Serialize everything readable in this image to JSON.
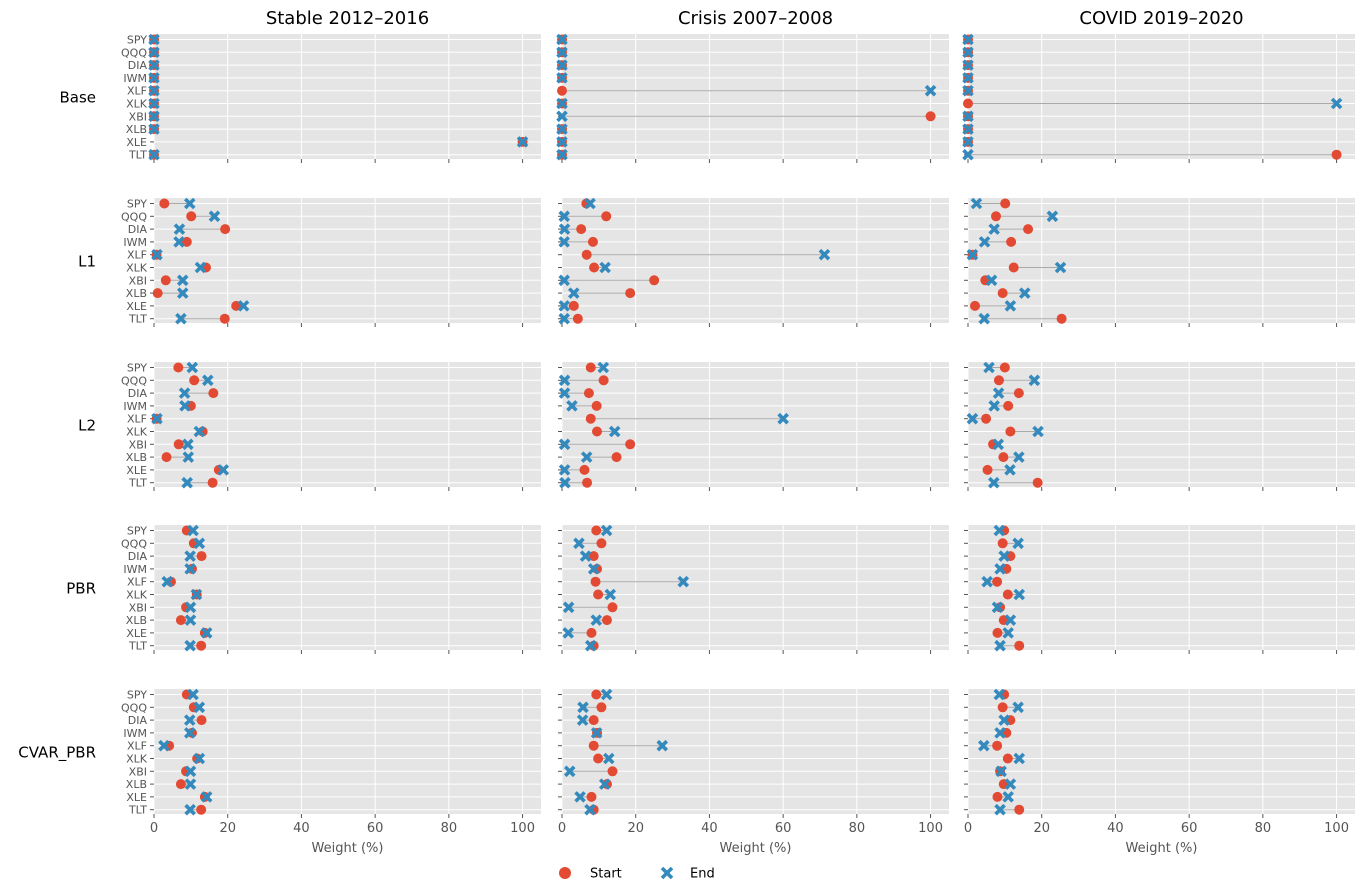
{
  "chart_data": {
    "type": "dumbbell",
    "xlabel": "Weight (%)",
    "xlim": [
      0,
      105
    ],
    "xticks": [
      0,
      20,
      40,
      60,
      80,
      100
    ],
    "columns": [
      "Stable 2012–2016",
      "Crisis 2007–2008",
      "COVID 2019–2020"
    ],
    "rows": [
      "Base",
      "L1",
      "L2",
      "PBR",
      "CVAR_PBR"
    ],
    "assets": [
      "SPY",
      "QQQ",
      "DIA",
      "IWM",
      "XLF",
      "XLK",
      "XBI",
      "XLB",
      "XLE",
      "TLT"
    ],
    "legend": {
      "start": "Start",
      "end": "End",
      "placement": "bottom-center"
    },
    "colors": {
      "start": "#E24A33",
      "end": "#348ABD",
      "panel": "#E5E5E5",
      "grid": "#FFFFFF",
      "line": "#AAAAAA"
    },
    "grid": true,
    "panels": [
      [
        {
          "start": [
            0,
            0,
            0,
            0,
            0,
            0,
            0,
            0,
            100,
            0
          ],
          "end": [
            0,
            0,
            0,
            0,
            0,
            0,
            0,
            0,
            100,
            0
          ]
        },
        {
          "start": [
            0,
            0,
            0,
            0,
            0,
            0,
            100,
            0,
            0,
            0
          ],
          "end": [
            0,
            0,
            0,
            0,
            100,
            0,
            0,
            0,
            0,
            0
          ]
        },
        {
          "start": [
            0,
            0,
            0,
            0,
            0,
            0,
            0,
            0,
            0,
            100
          ],
          "end": [
            0,
            0,
            0,
            0,
            0,
            100,
            0,
            0,
            0,
            0
          ]
        }
      ],
      [
        {
          "start": [
            2.8,
            10.1,
            19.3,
            8.9,
            0.7,
            14.1,
            3.2,
            1.0,
            22.3,
            19.2
          ],
          "end": [
            9.7,
            16.4,
            6.9,
            6.8,
            0.8,
            12.6,
            7.8,
            7.8,
            24.3,
            7.3
          ]
        },
        {
          "start": [
            6.6,
            12.0,
            5.2,
            8.4,
            6.7,
            8.7,
            25.0,
            18.5,
            3.2,
            4.3
          ],
          "end": [
            7.6,
            0.6,
            0.7,
            0.6,
            71.2,
            11.7,
            0.6,
            3.2,
            0.6,
            0.6
          ]
        },
        {
          "start": [
            10.1,
            7.6,
            16.3,
            11.7,
            1.2,
            12.4,
            4.7,
            9.4,
            1.9,
            25.4
          ],
          "end": [
            2.3,
            22.9,
            7.1,
            4.5,
            1.2,
            25.1,
            6.4,
            15.4,
            11.5,
            4.4
          ]
        }
      ],
      [
        {
          "start": [
            6.6,
            10.9,
            16.1,
            10.0,
            0.7,
            13.2,
            6.7,
            3.4,
            17.6,
            15.9
          ],
          "end": [
            10.4,
            14.6,
            8.3,
            8.4,
            0.8,
            12.3,
            9.2,
            9.3,
            18.8,
            9.0
          ]
        },
        {
          "start": [
            7.8,
            11.3,
            7.3,
            9.4,
            7.8,
            9.5,
            18.5,
            14.8,
            6.1,
            6.8
          ],
          "end": [
            11.2,
            0.7,
            0.7,
            2.7,
            60.0,
            14.3,
            0.7,
            6.7,
            0.7,
            0.8
          ]
        },
        {
          "start": [
            10.0,
            8.4,
            13.8,
            10.9,
            4.9,
            11.5,
            6.8,
            9.6,
            5.3,
            18.9
          ],
          "end": [
            5.7,
            18.0,
            8.3,
            7.1,
            1.2,
            19.0,
            8.2,
            13.8,
            11.4,
            7.0
          ]
        }
      ],
      [
        {
          "start": [
            8.9,
            10.8,
            12.9,
            10.3,
            4.6,
            11.6,
            8.7,
            7.3,
            13.8,
            12.8
          ],
          "end": [
            10.6,
            12.3,
            9.8,
            9.8,
            3.6,
            11.5,
            9.9,
            9.9,
            14.3,
            9.8
          ]
        },
        {
          "start": [
            9.3,
            10.7,
            8.6,
            9.5,
            9.1,
            9.8,
            13.7,
            12.2,
            8.0,
            8.6
          ],
          "end": [
            12.1,
            4.6,
            6.4,
            8.6,
            32.9,
            13.1,
            1.8,
            9.3,
            1.7,
            7.8
          ]
        },
        {
          "start": [
            9.8,
            9.4,
            11.5,
            10.4,
            7.9,
            10.8,
            8.7,
            9.7,
            8.0,
            13.9
          ],
          "end": [
            8.5,
            13.6,
            9.8,
            8.7,
            5.2,
            13.9,
            8.0,
            11.5,
            10.9,
            8.7
          ]
        }
      ],
      [
        {
          "start": [
            8.9,
            10.8,
            12.9,
            10.3,
            4.1,
            11.7,
            8.7,
            7.3,
            13.8,
            12.8
          ],
          "end": [
            10.6,
            12.3,
            9.7,
            9.7,
            2.7,
            12.3,
            9.9,
            9.9,
            14.3,
            9.8
          ]
        },
        {
          "start": [
            9.3,
            10.7,
            8.6,
            9.5,
            8.6,
            9.8,
            13.7,
            12.2,
            8.0,
            8.6
          ],
          "end": [
            12.1,
            5.7,
            5.6,
            9.4,
            27.2,
            12.7,
            2.1,
            11.6,
            4.9,
            7.6
          ]
        },
        {
          "start": [
            9.8,
            9.4,
            11.5,
            10.4,
            7.9,
            10.8,
            8.7,
            9.7,
            8.0,
            13.9
          ],
          "end": [
            8.5,
            13.6,
            9.8,
            8.7,
            4.3,
            13.9,
            9.0,
            11.5,
            10.9,
            8.7
          ]
        }
      ]
    ]
  }
}
